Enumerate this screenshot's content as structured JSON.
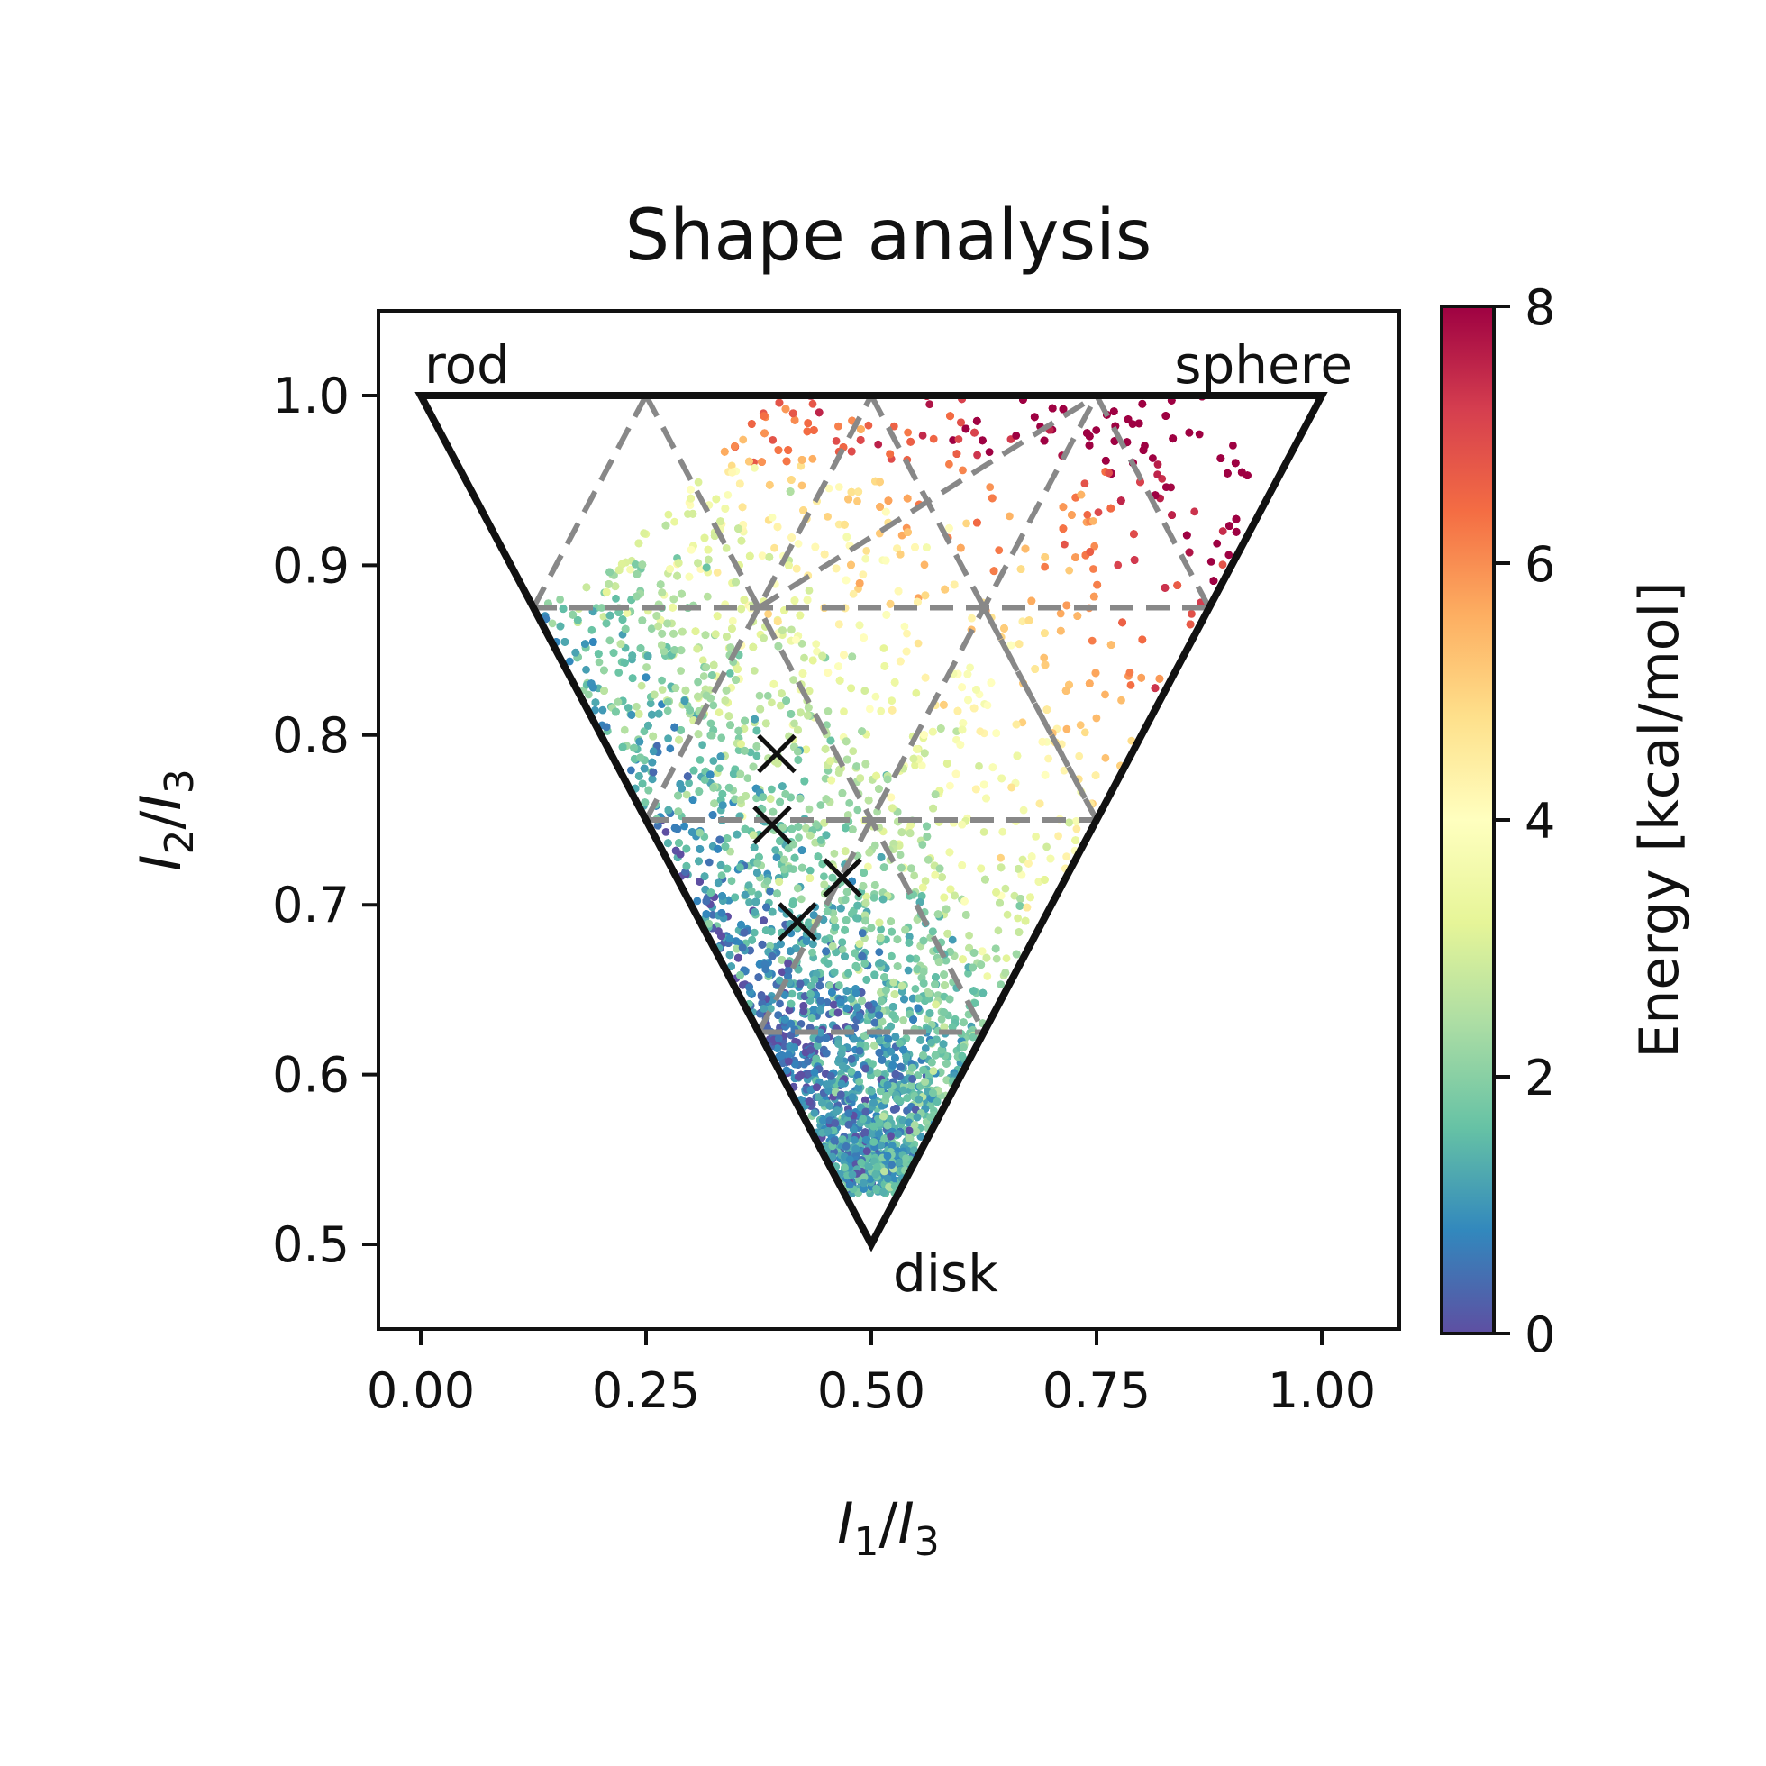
{
  "chart_data": {
    "type": "scatter",
    "title": "Shape analysis",
    "xlabel": {
      "main": "I",
      "sub1": "1",
      "slash": "/",
      "main2": "I",
      "sub2": "3"
    },
    "ylabel": {
      "main": "I",
      "sub1": "2",
      "slash": "/",
      "main2": "I",
      "sub2": "3"
    },
    "xlim": [
      -0.05,
      1.08
    ],
    "ylim": [
      0.45,
      1.05
    ],
    "xticks": [
      0.0,
      0.25,
      0.5,
      0.75,
      1.0
    ],
    "xtick_labels": [
      "0.00",
      "0.25",
      "0.50",
      "0.75",
      "1.00"
    ],
    "yticks": [
      0.5,
      0.6,
      0.7,
      0.8,
      0.9,
      1.0
    ],
    "ytick_labels": [
      "0.5",
      "0.6",
      "0.7",
      "0.8",
      "0.9",
      "1.0"
    ],
    "grid": false,
    "triangle_vertices": [
      {
        "label": "rod",
        "x": 0.0,
        "y": 1.0
      },
      {
        "label": "sphere",
        "x": 1.0,
        "y": 1.0
      },
      {
        "label": "disk",
        "x": 0.5,
        "y": 0.5
      }
    ],
    "dashed_grid_lines": [
      [
        [
          0.125,
          0.875
        ],
        [
          0.875,
          0.875
        ]
      ],
      [
        [
          0.25,
          0.75
        ],
        [
          0.75,
          0.75
        ]
      ],
      [
        [
          0.375,
          0.625
        ],
        [
          0.625,
          0.625
        ]
      ],
      [
        [
          0.125,
          0.875
        ],
        [
          0.25,
          1.0
        ]
      ],
      [
        [
          0.25,
          1.0
        ],
        [
          0.625,
          0.625
        ]
      ],
      [
        [
          0.375,
          0.875
        ],
        [
          0.75,
          1.0
        ]
      ],
      [
        [
          0.25,
          0.75
        ],
        [
          0.5,
          1.0
        ]
      ],
      [
        [
          0.5,
          1.0
        ],
        [
          0.75,
          0.75
        ]
      ],
      [
        [
          0.375,
          0.625
        ],
        [
          0.75,
          1.0
        ]
      ],
      [
        [
          0.75,
          1.0
        ],
        [
          0.875,
          0.875
        ]
      ],
      [
        [
          0.625,
          0.875
        ],
        [
          0.75,
          0.75
        ]
      ]
    ],
    "highlighted_points": [
      {
        "x": 0.395,
        "y": 0.789
      },
      {
        "x": 0.39,
        "y": 0.747
      },
      {
        "x": 0.468,
        "y": 0.716
      },
      {
        "x": 0.418,
        "y": 0.69
      }
    ],
    "scatter_cloud": {
      "description_of_density": "dense cloud of conformers inside the triangle, lowest energy near the left edge around x 0.35-0.45, y 0.65-0.82, energy rising toward the top and right",
      "approx_point_count": 9000,
      "color_variable": "Energy",
      "color_range": [
        0,
        8
      ]
    },
    "colorbar": {
      "label": "Energy [kcal/mol]",
      "ticks": [
        0,
        2,
        4,
        6,
        8
      ],
      "tick_labels": [
        "0",
        "2",
        "4",
        "6",
        "8"
      ],
      "colormap": "Spectral_r"
    }
  }
}
